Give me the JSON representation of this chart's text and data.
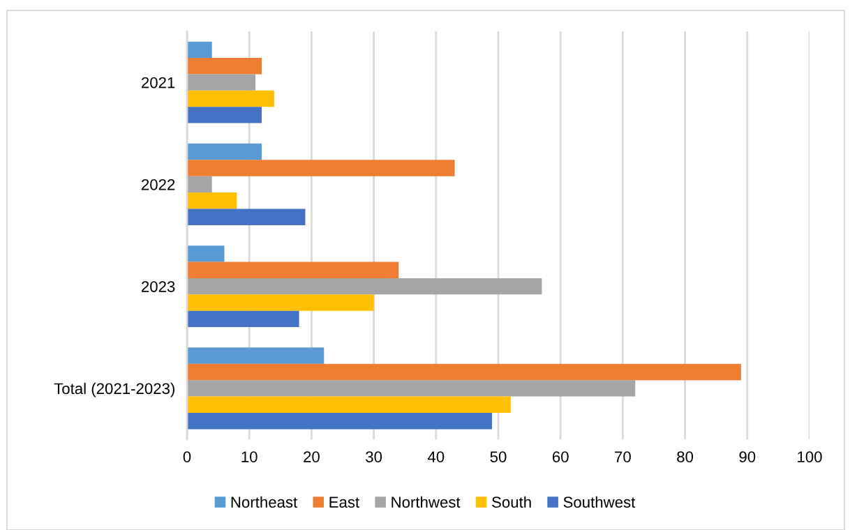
{
  "chart_data": {
    "type": "bar",
    "orientation": "horizontal",
    "categories": [
      "2021",
      "2022",
      "2023",
      "Total (2021-2023)"
    ],
    "series": [
      {
        "name": "Northeast",
        "color": "#5b9bd5",
        "values": [
          4,
          12,
          6,
          22
        ]
      },
      {
        "name": "East",
        "color": "#ed7d31",
        "values": [
          12,
          43,
          34,
          89
        ]
      },
      {
        "name": "Northwest",
        "color": "#a5a5a5",
        "values": [
          11,
          4,
          57,
          72
        ]
      },
      {
        "name": "South",
        "color": "#ffc000",
        "values": [
          14,
          8,
          30,
          52
        ]
      },
      {
        "name": "Southwest",
        "color": "#4472c4",
        "values": [
          12,
          19,
          18,
          49
        ]
      }
    ],
    "xlim": [
      0,
      100
    ],
    "xticks": [
      0,
      10,
      20,
      30,
      40,
      50,
      60,
      70,
      80,
      90,
      100
    ],
    "grid": "x",
    "legend": "bottom"
  }
}
